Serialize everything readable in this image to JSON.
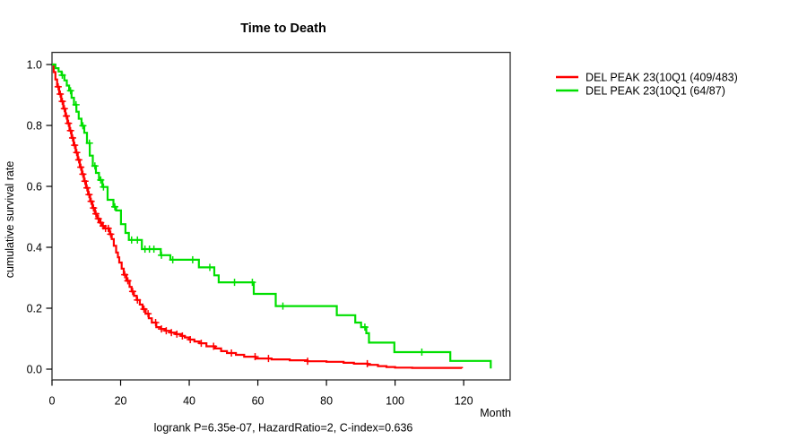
{
  "figure": {
    "background": "#ffffff",
    "frame_color": "#3c3c3c",
    "tick_color": "#000000"
  },
  "chart_data": {
    "type": "line",
    "subtype": "kaplan-meier-step-survival",
    "title": "Time to Death",
    "xlabel": "Month",
    "ylabel": "cumulative survival rate",
    "annotation": "logrank P=6.35e-07, HazardRatio=2, C-index=0.636",
    "xlim": [
      0,
      133.5
    ],
    "ylim": [
      0,
      1.0
    ],
    "x_ticks": [
      0,
      20,
      40,
      60,
      80,
      100,
      120
    ],
    "x_tick_labels": [
      "0",
      "20",
      "40",
      "60",
      "80",
      "100",
      "120"
    ],
    "y_ticks": [
      0.0,
      0.2,
      0.4,
      0.6,
      0.8,
      1.0
    ],
    "y_tick_labels": [
      "0.0",
      "0.2",
      "0.4",
      "0.6",
      "0.8",
      "1.0"
    ],
    "grid": false,
    "legend_position": "right-outside",
    "series": [
      {
        "name": "DEL PEAK 23(10Q1 (409/483)",
        "color": "#ff0000",
        "events_total": "409/483",
        "t": [
          0,
          0.5,
          1.0,
          1.5,
          2.1,
          2.7,
          3.3,
          3.9,
          4.5,
          5.1,
          5.7,
          6.3,
          6.9,
          7.5,
          8.1,
          8.7,
          9.3,
          9.9,
          10.5,
          11.1,
          11.8,
          12.5,
          13.2,
          13.9,
          14.6,
          15.3,
          16.8,
          17.4,
          18.0,
          18.7,
          19.2,
          19.6,
          20.3,
          20.9,
          21.7,
          22.6,
          23.2,
          23.9,
          24.7,
          25.6,
          26.4,
          27.3,
          28.2,
          29.1,
          30.4,
          31.7,
          33.0,
          34.5,
          36.0,
          37.7,
          38.7,
          40.0,
          41.5,
          43.0,
          45.0,
          47.6,
          49.3,
          51.0,
          53.6,
          56.0,
          59.3,
          64.0,
          69.3,
          74.5,
          80.0,
          85.0,
          88.0,
          92.0,
          95.0,
          97.5,
          100.0,
          105.0,
          119.5
        ],
        "s": [
          1.0,
          0.975,
          0.951,
          0.927,
          0.903,
          0.879,
          0.855,
          0.831,
          0.807,
          0.783,
          0.759,
          0.735,
          0.711,
          0.687,
          0.663,
          0.64,
          0.617,
          0.595,
          0.573,
          0.551,
          0.529,
          0.51,
          0.494,
          0.481,
          0.47,
          0.462,
          0.443,
          0.427,
          0.405,
          0.383,
          0.367,
          0.35,
          0.33,
          0.31,
          0.29,
          0.27,
          0.255,
          0.241,
          0.227,
          0.212,
          0.197,
          0.182,
          0.167,
          0.153,
          0.138,
          0.132,
          0.126,
          0.12,
          0.115,
          0.109,
          0.104,
          0.097,
          0.091,
          0.085,
          0.075,
          0.068,
          0.059,
          0.053,
          0.047,
          0.041,
          0.035,
          0.032,
          0.029,
          0.026,
          0.024,
          0.021,
          0.018,
          0.014,
          0.01,
          0.007,
          0.005,
          0.004,
          0.003
        ],
        "censor_t": [
          1.8,
          2.4,
          3.0,
          3.6,
          4.2,
          4.8,
          5.4,
          6.0,
          6.6,
          7.2,
          7.8,
          8.4,
          9.0,
          9.6,
          10.2,
          10.8,
          11.4,
          12.1,
          12.8,
          13.5,
          14.2,
          14.9,
          15.6,
          16.4,
          17.1,
          21.2,
          22.1,
          23.5,
          24.9,
          26.8,
          28.0,
          30.2,
          31.9,
          33.3,
          34.8,
          36.4,
          38.0,
          40.3,
          43.5,
          47.1,
          52.3,
          59.2,
          63.1,
          74.5,
          91.9
        ]
      },
      {
        "name": "DEL PEAK 23(10Q1 (64/87)",
        "color": "#00df00",
        "events_total": "64/87",
        "t": [
          0,
          1.0,
          1.9,
          2.8,
          3.6,
          4.3,
          5.0,
          5.7,
          6.4,
          7.1,
          7.8,
          8.6,
          9.4,
          10.2,
          11.0,
          11.9,
          12.8,
          13.7,
          14.7,
          16.2,
          17.9,
          18.7,
          20.1,
          21.4,
          22.4,
          26.2,
          31.7,
          34.5,
          42.8,
          47.3,
          48.6,
          58.8,
          65.2,
          83.0,
          88.4,
          90.1,
          91.6,
          92.4,
          99.8,
          116.1,
          127.9
        ],
        "s": [
          1.0,
          0.988,
          0.977,
          0.965,
          0.948,
          0.931,
          0.914,
          0.891,
          0.868,
          0.845,
          0.822,
          0.799,
          0.776,
          0.742,
          0.701,
          0.667,
          0.644,
          0.621,
          0.598,
          0.556,
          0.533,
          0.521,
          0.476,
          0.447,
          0.424,
          0.394,
          0.374,
          0.359,
          0.334,
          0.308,
          0.285,
          0.247,
          0.207,
          0.177,
          0.153,
          0.138,
          0.118,
          0.087,
          0.056,
          0.027,
          0.002
        ],
        "censor_t": [
          3.0,
          5.4,
          7.0,
          9.0,
          10.9,
          12.5,
          14.2,
          15.0,
          18.3,
          23.2,
          24.9,
          27.1,
          28.4,
          29.7,
          31.9,
          35.2,
          41.0,
          46.0,
          53.2,
          58.4,
          67.3,
          91.2,
          107.8
        ]
      }
    ]
  }
}
